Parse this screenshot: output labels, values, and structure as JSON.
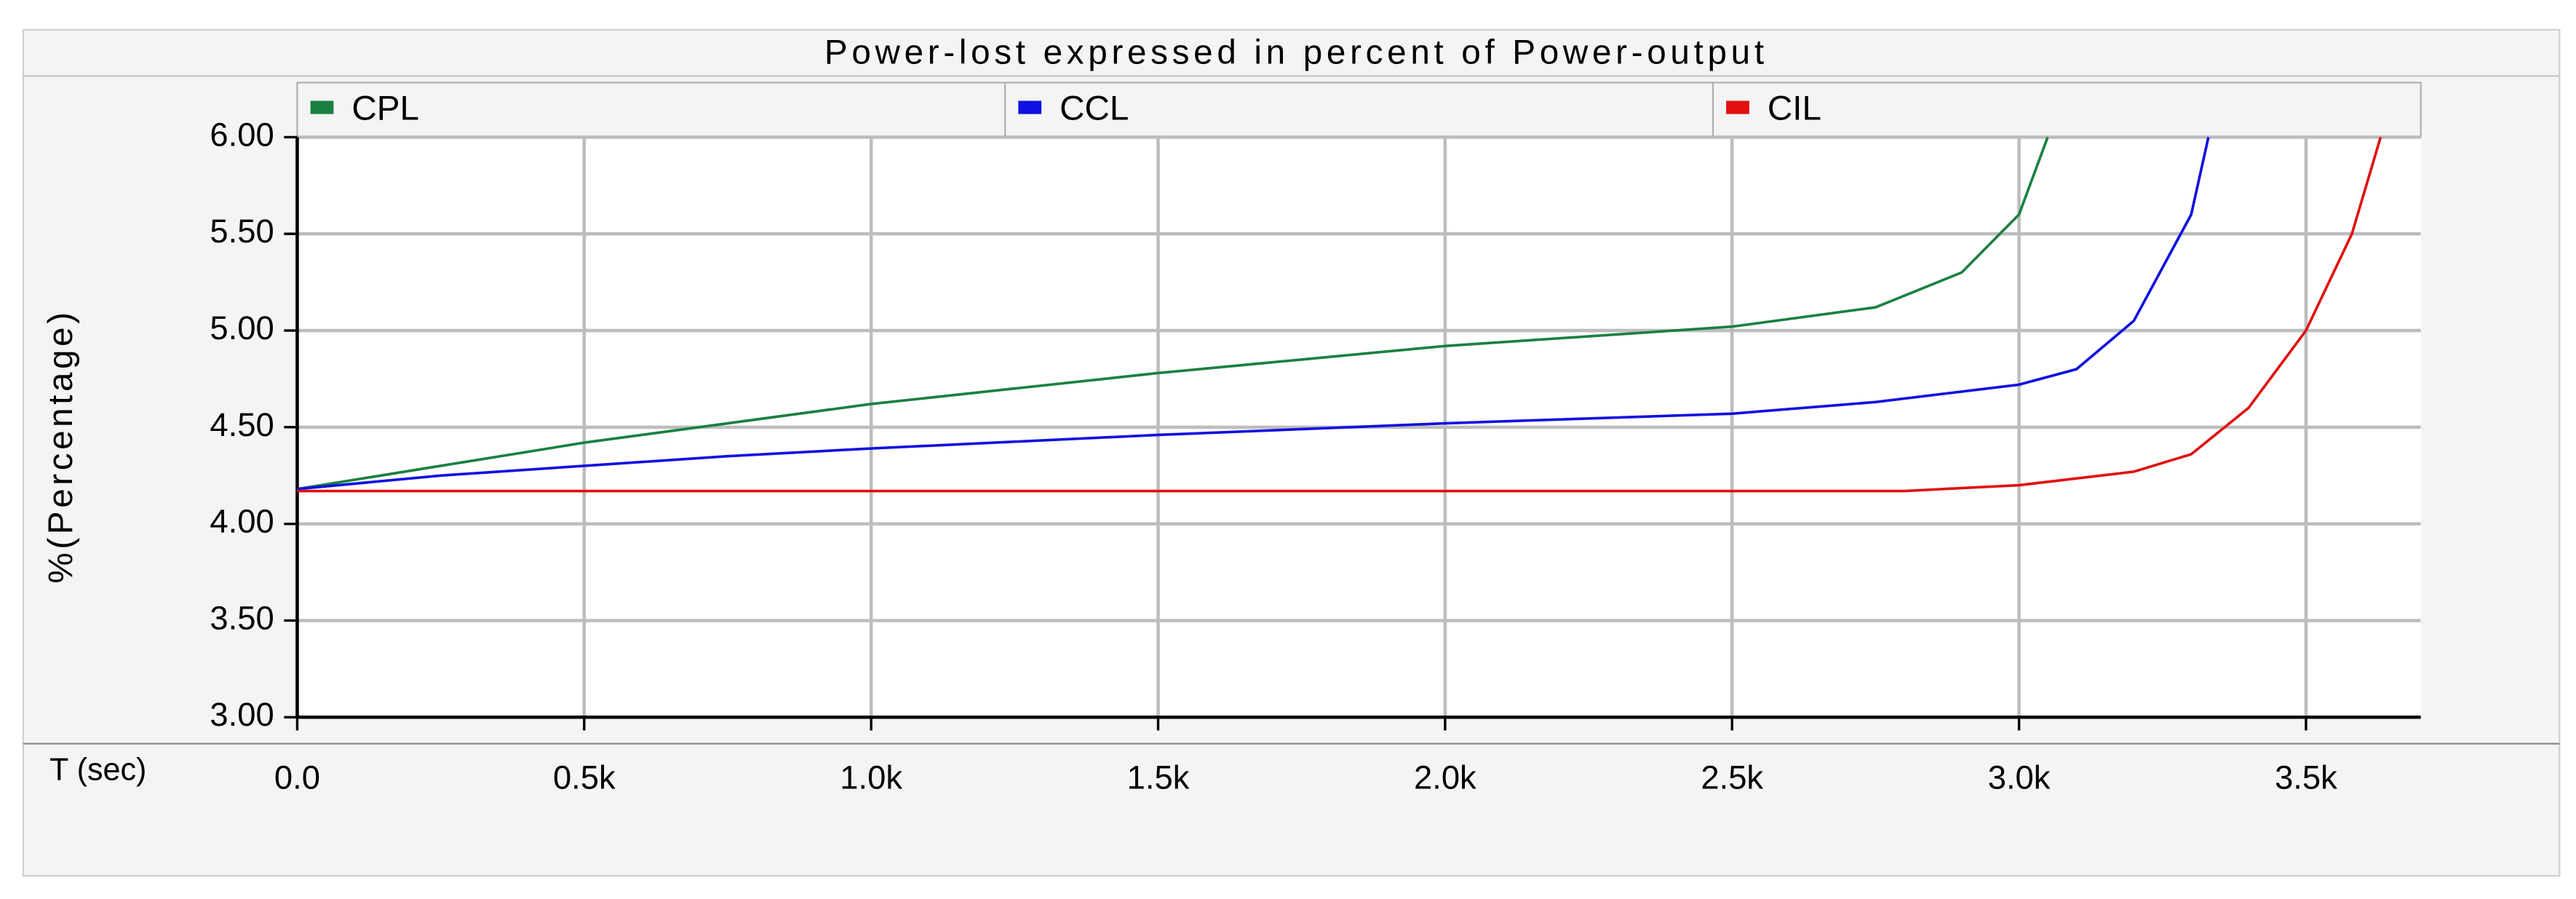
{
  "chart_data": {
    "type": "line",
    "title": "Power-lost expressed in percent of Power-output",
    "x_label": "T (sec)",
    "y_label": "%(Percentage)",
    "xlim": [
      0,
      3700
    ],
    "ylim": [
      3.0,
      6.0
    ],
    "xticks": [
      {
        "value": 0,
        "label": "0.0"
      },
      {
        "value": 500,
        "label": "0.5k"
      },
      {
        "value": 1000,
        "label": "1.0k"
      },
      {
        "value": 1500,
        "label": "1.5k"
      },
      {
        "value": 2000,
        "label": "2.0k"
      },
      {
        "value": 2500,
        "label": "2.5k"
      },
      {
        "value": 3000,
        "label": "3.0k"
      },
      {
        "value": 3500,
        "label": "3.5k"
      }
    ],
    "yticks": [
      {
        "value": 3.0,
        "label": "3.00"
      },
      {
        "value": 3.5,
        "label": "3.50"
      },
      {
        "value": 4.0,
        "label": "4.00"
      },
      {
        "value": 4.5,
        "label": "4.50"
      },
      {
        "value": 5.0,
        "label": "5.00"
      },
      {
        "value": 5.5,
        "label": "5.50"
      },
      {
        "value": 6.0,
        "label": "6.00"
      }
    ],
    "grid": true,
    "series": [
      {
        "name": "CPL",
        "color": "#1a8040",
        "x": [
          0,
          250,
          500,
          750,
          1000,
          1250,
          1500,
          1750,
          2000,
          2250,
          2500,
          2750,
          2900,
          3000,
          3050
        ],
        "values": [
          4.18,
          4.3,
          4.42,
          4.52,
          4.62,
          4.7,
          4.78,
          4.85,
          4.92,
          4.97,
          5.02,
          5.12,
          5.3,
          5.6,
          6.0
        ]
      },
      {
        "name": "CCL",
        "color": "#1010e0",
        "x": [
          0,
          250,
          500,
          750,
          1000,
          1500,
          2000,
          2500,
          2750,
          3000,
          3100,
          3200,
          3300,
          3330
        ],
        "values": [
          4.18,
          4.25,
          4.3,
          4.35,
          4.39,
          4.46,
          4.52,
          4.57,
          4.63,
          4.72,
          4.8,
          5.05,
          5.6,
          6.0
        ]
      },
      {
        "name": "CIL",
        "color": "#e01010",
        "x": [
          0,
          2800,
          3000,
          3200,
          3300,
          3400,
          3500,
          3580,
          3630
        ],
        "values": [
          4.17,
          4.17,
          4.2,
          4.27,
          4.36,
          4.6,
          5.0,
          5.5,
          6.0
        ]
      }
    ]
  }
}
